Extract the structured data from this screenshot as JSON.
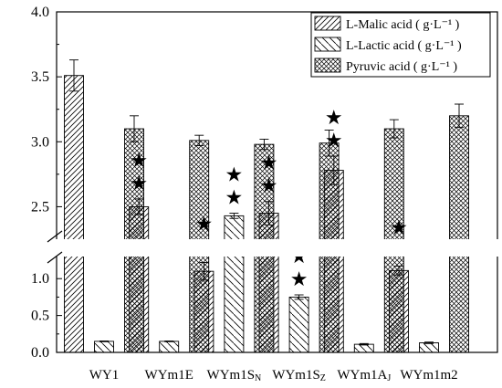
{
  "chart_data": {
    "type": "bar",
    "categories": [
      "WY1",
      "WYm1E",
      "WYm1Sₙ",
      "WYm1Sᴢ",
      "WYm1Aᴊ",
      "WYm1m2"
    ],
    "category_labels": [
      {
        "main": "WY1",
        "sub": ""
      },
      {
        "main": "WYm1E",
        "sub": ""
      },
      {
        "main": "WYm1S",
        "sub": "N"
      },
      {
        "main": "WYm1S",
        "sub": "Z"
      },
      {
        "main": "WYm1A",
        "sub": "J"
      },
      {
        "main": "WYm1m2",
        "sub": ""
      }
    ],
    "series": [
      {
        "name": "L-Malic acid",
        "unit": "g·L⁻¹",
        "pattern": "diag-fwd",
        "values": [
          3.51,
          2.5,
          1.1,
          2.45,
          2.78,
          1.11
        ],
        "errors": [
          0.12,
          0.06,
          0.12,
          0.09,
          0.11,
          0.06
        ],
        "stars": [
          0,
          2,
          2,
          2,
          2,
          2
        ]
      },
      {
        "name": "L-Lactic acid",
        "unit": "g·L⁻¹",
        "pattern": "diag-back",
        "values": [
          0.15,
          0.15,
          2.43,
          0.75,
          0.11,
          0.13
        ],
        "errors": [
          0.005,
          0.005,
          0.02,
          0.03,
          0.01,
          0.01
        ],
        "stars": [
          0,
          0,
          2,
          2,
          0,
          0
        ]
      },
      {
        "name": "Pyruvic acid",
        "unit": "g·L⁻¹",
        "pattern": "crosshatch",
        "values": [
          3.1,
          3.01,
          2.98,
          2.99,
          3.1,
          3.2
        ],
        "errors": [
          0.1,
          0.04,
          0.04,
          0.1,
          0.07,
          0.09
        ],
        "stars": [
          0,
          0,
          0,
          0,
          0,
          0
        ]
      }
    ],
    "y_axis": {
      "broken": true,
      "lower_segment": {
        "range": [
          0.0,
          1.3
        ],
        "ticks": [
          "0.0",
          "0.5",
          "1.0"
        ],
        "tick_values": [
          0.0,
          0.5,
          1.0
        ]
      },
      "upper_segment": {
        "range": [
          2.25,
          4.0
        ],
        "ticks": [
          "2.5",
          "3.0",
          "3.5",
          "4.0"
        ],
        "tick_values": [
          2.5,
          3.0,
          3.5,
          4.0
        ]
      }
    },
    "star_symbol": "★",
    "legend_position": "top-right",
    "grid": false,
    "colors": {
      "bar_fill": "#ffffff",
      "stroke": "#000000"
    }
  }
}
